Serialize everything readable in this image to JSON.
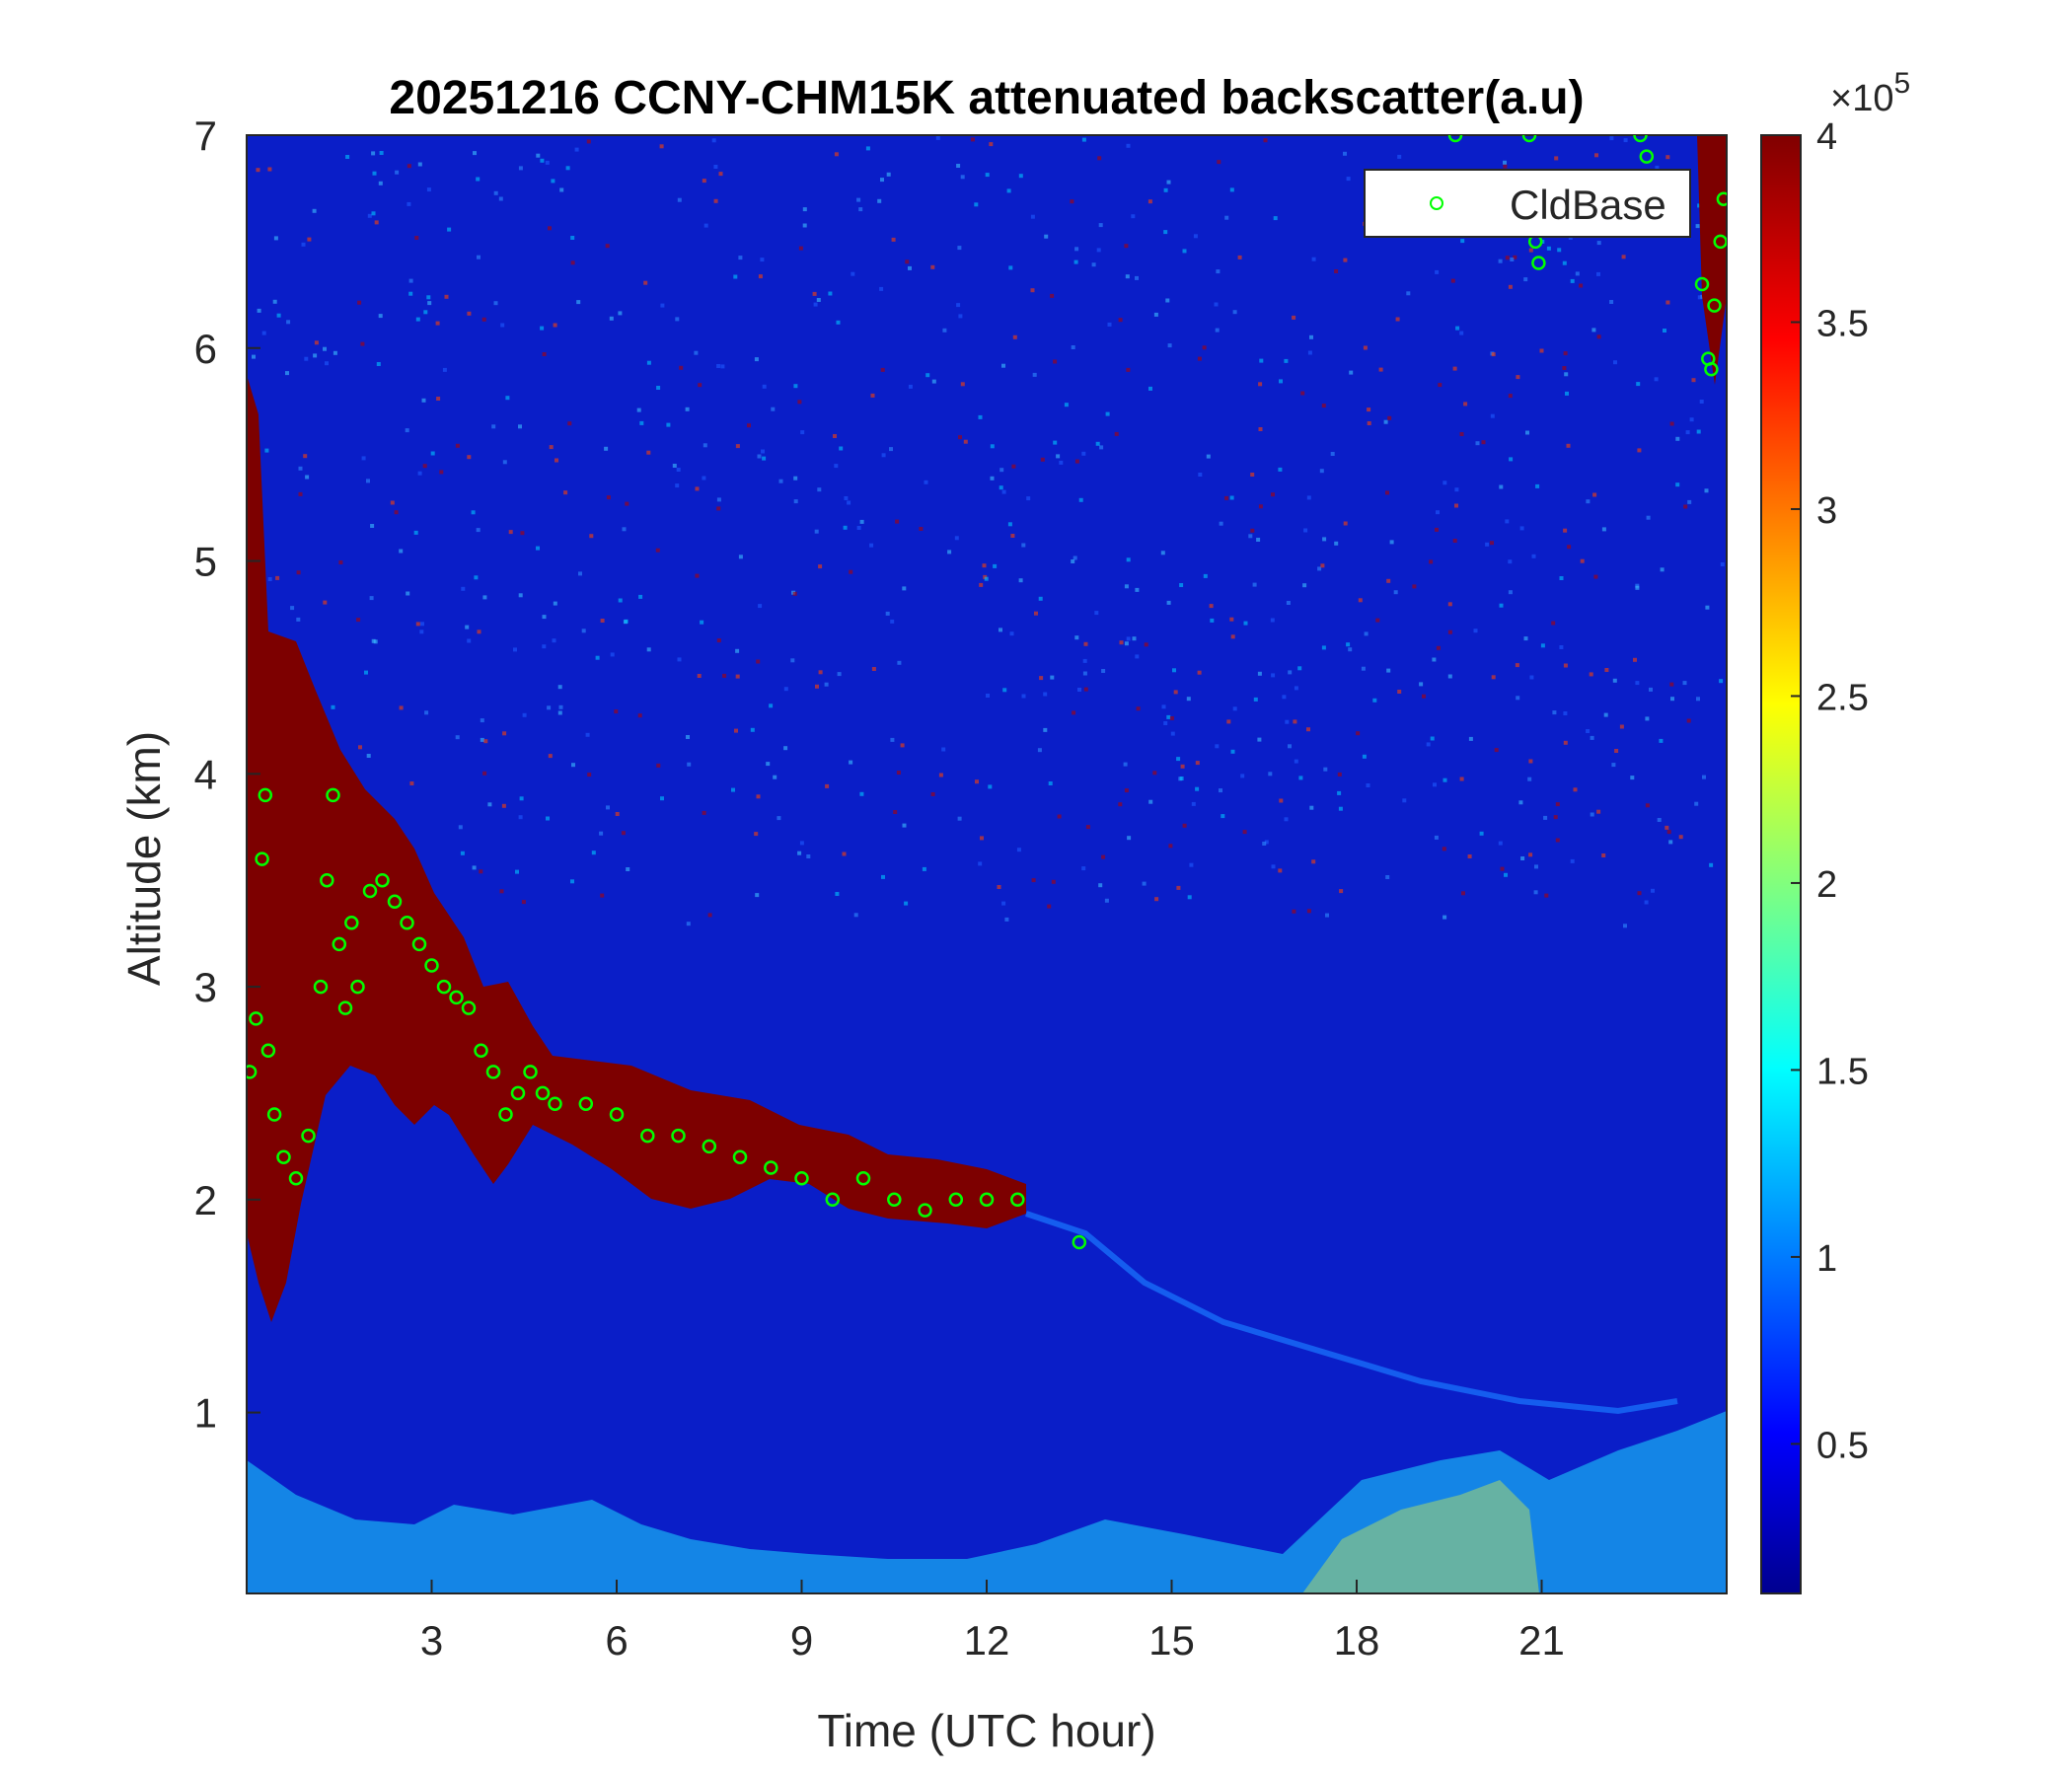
{
  "chart_data": {
    "type": "heatmap",
    "title": "20251216 CCNY-CHM15K attenuated backscatter(a.u)",
    "xlabel": "Time (UTC hour)",
    "ylabel": "Altitude (km)",
    "xlim": [
      0,
      24
    ],
    "ylim": [
      0.15,
      7
    ],
    "x_ticks": [
      3,
      6,
      9,
      12,
      15,
      18,
      21
    ],
    "y_ticks": [
      1,
      2,
      3,
      4,
      5,
      6,
      7
    ],
    "colorbar": {
      "colormap": "jet",
      "range": [
        0.1,
        4
      ],
      "ticks": [
        0.5,
        1,
        1.5,
        2,
        2.5,
        3,
        3.5,
        4
      ],
      "multiplier": "×10",
      "exponent": "5"
    },
    "grid": false,
    "legend": {
      "position": "top-right",
      "entries": [
        "CldBase"
      ]
    },
    "series": [
      {
        "name": "CldBase",
        "marker": "circle",
        "color": "#00ff00",
        "points": [
          [
            0.05,
            2.6
          ],
          [
            0.15,
            2.85
          ],
          [
            0.25,
            3.6
          ],
          [
            0.3,
            3.9
          ],
          [
            0.35,
            2.7
          ],
          [
            0.45,
            2.4
          ],
          [
            0.6,
            2.2
          ],
          [
            0.8,
            2.1
          ],
          [
            1.0,
            2.3
          ],
          [
            1.2,
            3.0
          ],
          [
            1.3,
            3.5
          ],
          [
            1.4,
            3.9
          ],
          [
            1.5,
            3.2
          ],
          [
            1.6,
            2.9
          ],
          [
            1.7,
            3.3
          ],
          [
            1.8,
            3.0
          ],
          [
            2.0,
            3.45
          ],
          [
            2.2,
            3.5
          ],
          [
            2.4,
            3.4
          ],
          [
            2.6,
            3.3
          ],
          [
            2.8,
            3.2
          ],
          [
            3.0,
            3.1
          ],
          [
            3.2,
            3.0
          ],
          [
            3.4,
            2.95
          ],
          [
            3.6,
            2.9
          ],
          [
            3.8,
            2.7
          ],
          [
            4.0,
            2.6
          ],
          [
            4.2,
            2.4
          ],
          [
            4.4,
            2.5
          ],
          [
            4.6,
            2.6
          ],
          [
            4.8,
            2.5
          ],
          [
            5.0,
            2.45
          ],
          [
            5.5,
            2.45
          ],
          [
            6.0,
            2.4
          ],
          [
            6.5,
            2.3
          ],
          [
            7.0,
            2.3
          ],
          [
            7.5,
            2.25
          ],
          [
            8.0,
            2.2
          ],
          [
            8.5,
            2.15
          ],
          [
            9.0,
            2.1
          ],
          [
            9.5,
            2.0
          ],
          [
            10.0,
            2.1
          ],
          [
            10.5,
            2.0
          ],
          [
            11.0,
            1.95
          ],
          [
            11.5,
            2.0
          ],
          [
            12.0,
            2.0
          ],
          [
            12.5,
            2.0
          ],
          [
            13.5,
            1.8
          ],
          [
            19.6,
            7.0
          ],
          [
            20.8,
            7.0
          ],
          [
            20.9,
            6.5
          ],
          [
            20.95,
            6.4
          ],
          [
            22.6,
            7.0
          ],
          [
            22.7,
            6.9
          ],
          [
            23.6,
            6.3
          ],
          [
            23.7,
            5.95
          ],
          [
            23.75,
            5.9
          ],
          [
            23.8,
            6.2
          ],
          [
            23.9,
            6.5
          ],
          [
            23.95,
            6.7
          ]
        ]
      }
    ]
  }
}
